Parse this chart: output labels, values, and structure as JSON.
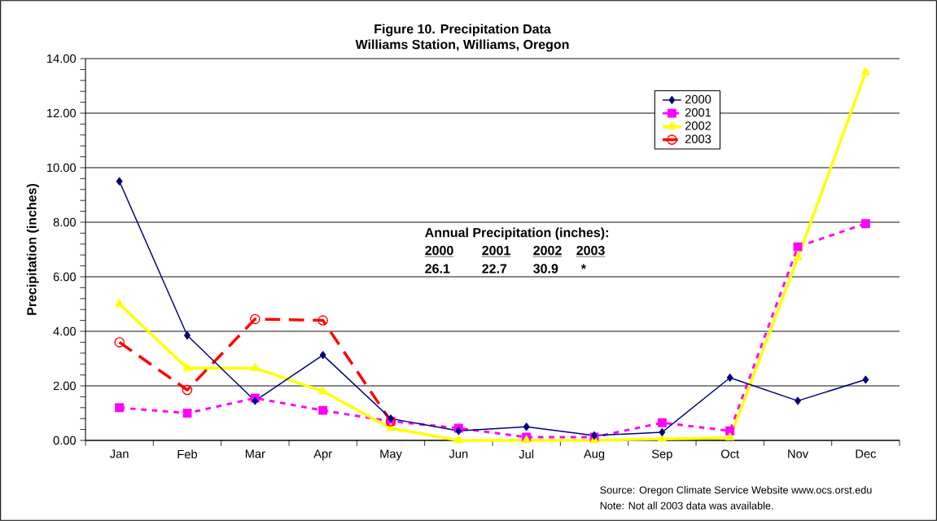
{
  "chart_data": {
    "type": "line",
    "title": "Figure 10.  Precipitation Data",
    "subtitle": "Williams Station, Williams, Oregon",
    "ylabel": "Precipitation (inches)",
    "categories": [
      "Jan",
      "Feb",
      "Mar",
      "Apr",
      "May",
      "Jun",
      "Jul",
      "Aug",
      "Sep",
      "Oct",
      "Nov",
      "Dec"
    ],
    "series": [
      {
        "name": "2000",
        "color": "#000080",
        "marker": "diamond",
        "line_style": "solid",
        "values": [
          9.5,
          3.85,
          1.45,
          3.13,
          0.8,
          0.35,
          0.5,
          0.18,
          0.3,
          2.3,
          1.45,
          2.23
        ]
      },
      {
        "name": "2001",
        "color": "#ff00ff",
        "marker": "square",
        "line_style": "dotted",
        "values": [
          1.2,
          1.0,
          1.55,
          1.1,
          0.7,
          0.45,
          0.12,
          0.12,
          0.65,
          0.35,
          7.1,
          7.95
        ]
      },
      {
        "name": "2002",
        "color": "#ffff00",
        "marker": "triangle",
        "line_style": "solid",
        "values": [
          5.0,
          2.65,
          2.65,
          1.8,
          0.45,
          0.0,
          0.0,
          0.0,
          0.05,
          0.1,
          6.7,
          13.5
        ]
      },
      {
        "name": "2003",
        "color": "#ff0000",
        "marker": "circle",
        "line_style": "dashed",
        "values": [
          3.6,
          1.85,
          4.45,
          4.4,
          0.7,
          null,
          null,
          null,
          null,
          null,
          null,
          null
        ]
      }
    ],
    "ylim": [
      0,
      14
    ],
    "yticks": [
      {
        "value": 0,
        "label": "0.00"
      },
      {
        "value": 2,
        "label": "2.00"
      },
      {
        "value": 4,
        "label": "4.00"
      },
      {
        "value": 6,
        "label": "6.00"
      },
      {
        "value": 8,
        "label": "8.00"
      },
      {
        "value": 10,
        "label": "10.00"
      },
      {
        "value": 12,
        "label": "12.00"
      },
      {
        "value": 14,
        "label": "14.00"
      }
    ],
    "grid": "y",
    "legend": "top right",
    "annotations": [
      "Annual Precipitation (inches):",
      "2000",
      "2001",
      "2002",
      "2003",
      "26.1",
      "22.7",
      "30.9",
      "*",
      "Source: Oregon Climate Service Website www.ocs.orst.edu",
      "Note:  Not all 2003 data was available."
    ]
  }
}
